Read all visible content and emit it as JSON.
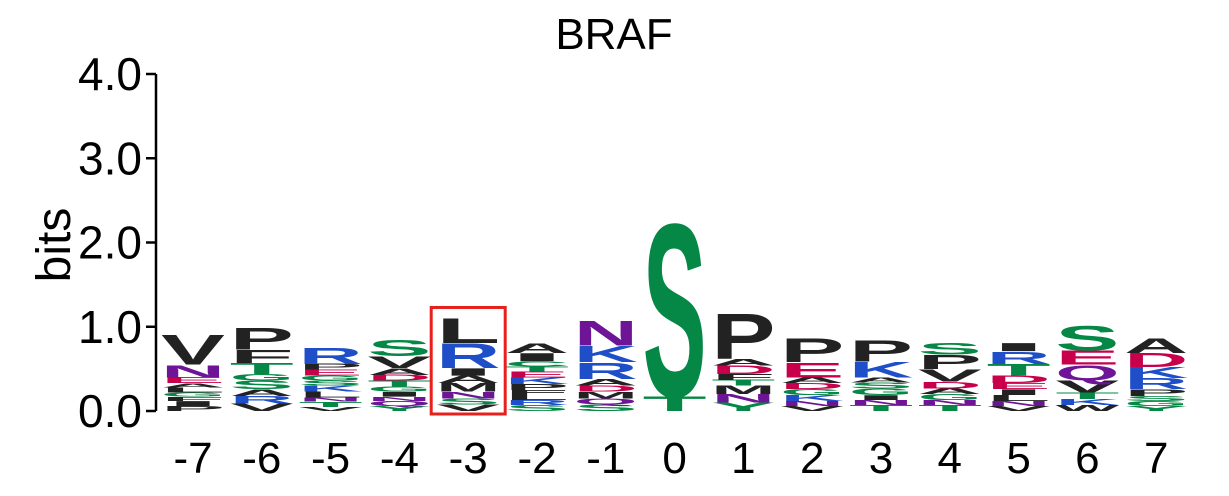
{
  "colors": {
    "hydrophobic": "#222222",
    "polar": "#058745",
    "basic": "#1E4FC8",
    "acidic": "#C8004B",
    "amide": "#6E1496",
    "highlight": "#E8201C"
  },
  "chart_data": {
    "type": "sequence-logo",
    "title": "BRAF",
    "ylabel": "bits",
    "ylim": [
      0,
      4
    ],
    "yticks": [
      "0.0",
      "1.0",
      "2.0",
      "3.0",
      "4.0"
    ],
    "ytick_values": [
      0,
      1,
      2,
      3,
      4
    ],
    "highlight_position": "-3",
    "color_groups": {
      "hydrophobic": [
        "A",
        "V",
        "L",
        "I",
        "P",
        "F",
        "M",
        "W"
      ],
      "polar": [
        "S",
        "T",
        "G",
        "C",
        "Y"
      ],
      "basic": [
        "R",
        "K",
        "H"
      ],
      "acidic": [
        "D",
        "E"
      ],
      "amide": [
        "N",
        "Q"
      ]
    },
    "positions": [
      {
        "label": "-7",
        "letters": [
          [
            "P",
            0.06
          ],
          [
            "I",
            0.06
          ],
          [
            "F",
            0.05
          ],
          [
            "G",
            0.05
          ],
          [
            "L",
            0.06
          ],
          [
            "A",
            0.05
          ],
          [
            "E",
            0.07
          ],
          [
            "N",
            0.15
          ],
          [
            "V",
            0.36
          ]
        ]
      },
      {
        "label": "-6",
        "letters": [
          [
            "V",
            0.09
          ],
          [
            "R",
            0.09
          ],
          [
            "A",
            0.08
          ],
          [
            "S",
            0.1
          ],
          [
            "G",
            0.08
          ],
          [
            "T",
            0.13
          ],
          [
            "F",
            0.16
          ],
          [
            "P",
            0.27
          ]
        ]
      },
      {
        "label": "-5",
        "letters": [
          [
            "V",
            0.05
          ],
          [
            "T",
            0.06
          ],
          [
            "N",
            0.05
          ],
          [
            "L",
            0.07
          ],
          [
            "K",
            0.07
          ],
          [
            "S",
            0.06
          ],
          [
            "G",
            0.06
          ],
          [
            "E",
            0.07
          ],
          [
            "P",
            0.07
          ],
          [
            "R",
            0.2
          ]
        ]
      },
      {
        "label": "-4",
        "letters": [
          [
            "Y",
            0.06
          ],
          [
            "Q",
            0.06
          ],
          [
            "N",
            0.05
          ],
          [
            "I",
            0.06
          ],
          [
            "G",
            0.06
          ],
          [
            "T",
            0.07
          ],
          [
            "D",
            0.07
          ],
          [
            "A",
            0.08
          ],
          [
            "V",
            0.14
          ],
          [
            "S",
            0.2
          ]
        ]
      },
      {
        "label": "-3",
        "letters": [
          [
            "V",
            0.08
          ],
          [
            "S",
            0.07
          ],
          [
            "N",
            0.08
          ],
          [
            "M",
            0.1
          ],
          [
            "A",
            0.09
          ],
          [
            "I",
            0.09
          ],
          [
            "R",
            0.3
          ],
          [
            "L",
            0.3
          ]
        ]
      },
      {
        "label": "-2",
        "letters": [
          [
            "S",
            0.07
          ],
          [
            "R",
            0.06
          ],
          [
            "L",
            0.06
          ],
          [
            "F",
            0.06
          ],
          [
            "P",
            0.07
          ],
          [
            "K",
            0.08
          ],
          [
            "E",
            0.07
          ],
          [
            "T",
            0.06
          ],
          [
            "C",
            0.06
          ],
          [
            "I",
            0.1
          ],
          [
            "A",
            0.12
          ]
        ]
      },
      {
        "label": "-1",
        "letters": [
          [
            "S",
            0.08
          ],
          [
            "Q",
            0.07
          ],
          [
            "M",
            0.08
          ],
          [
            "D",
            0.07
          ],
          [
            "A",
            0.08
          ],
          [
            "R",
            0.2
          ],
          [
            "K",
            0.2
          ],
          [
            "N",
            0.3
          ]
        ]
      },
      {
        "label": "0",
        "letters": [
          [
            "T",
            0.18
          ],
          [
            "S",
            2.1
          ]
        ]
      },
      {
        "label": "1",
        "letters": [
          [
            "Y",
            0.1
          ],
          [
            "N",
            0.1
          ],
          [
            "M",
            0.1
          ],
          [
            "T",
            0.07
          ],
          [
            "F",
            0.07
          ],
          [
            "D",
            0.1
          ],
          [
            "A",
            0.08
          ],
          [
            "P",
            0.55
          ]
        ]
      },
      {
        "label": "2",
        "letters": [
          [
            "V",
            0.06
          ],
          [
            "N",
            0.06
          ],
          [
            "K",
            0.07
          ],
          [
            "G",
            0.07
          ],
          [
            "D",
            0.07
          ],
          [
            "A",
            0.07
          ],
          [
            "E",
            0.18
          ],
          [
            "P",
            0.29
          ]
        ]
      },
      {
        "label": "3",
        "letters": [
          [
            "T",
            0.07
          ],
          [
            "N",
            0.06
          ],
          [
            "I",
            0.06
          ],
          [
            "G",
            0.08
          ],
          [
            "S",
            0.07
          ],
          [
            "A",
            0.06
          ],
          [
            "K",
            0.19
          ],
          [
            "P",
            0.26
          ]
        ]
      },
      {
        "label": "4",
        "letters": [
          [
            "T",
            0.07
          ],
          [
            "N",
            0.06
          ],
          [
            "G",
            0.07
          ],
          [
            "A",
            0.07
          ],
          [
            "D",
            0.08
          ],
          [
            "V",
            0.15
          ],
          [
            "P",
            0.17
          ],
          [
            "S",
            0.14
          ]
        ]
      },
      {
        "label": "5",
        "letters": [
          [
            "V",
            0.06
          ],
          [
            "N",
            0.06
          ],
          [
            "L",
            0.07
          ],
          [
            "I",
            0.07
          ],
          [
            "E",
            0.07
          ],
          [
            "D",
            0.09
          ],
          [
            "T",
            0.14
          ],
          [
            "R",
            0.15
          ],
          [
            "I",
            0.1
          ]
        ]
      },
      {
        "label": "6",
        "letters": [
          [
            "W",
            0.07
          ],
          [
            "K",
            0.07
          ],
          [
            "T",
            0.08
          ],
          [
            "V",
            0.15
          ],
          [
            "Q",
            0.18
          ],
          [
            "E",
            0.17
          ],
          [
            "S",
            0.3
          ]
        ]
      },
      {
        "label": "7",
        "letters": [
          [
            "Y",
            0.06
          ],
          [
            "G",
            0.06
          ],
          [
            "S",
            0.06
          ],
          [
            "P",
            0.08
          ],
          [
            "R",
            0.13
          ],
          [
            "K",
            0.13
          ],
          [
            "D",
            0.17
          ],
          [
            "A",
            0.18
          ]
        ]
      }
    ]
  }
}
